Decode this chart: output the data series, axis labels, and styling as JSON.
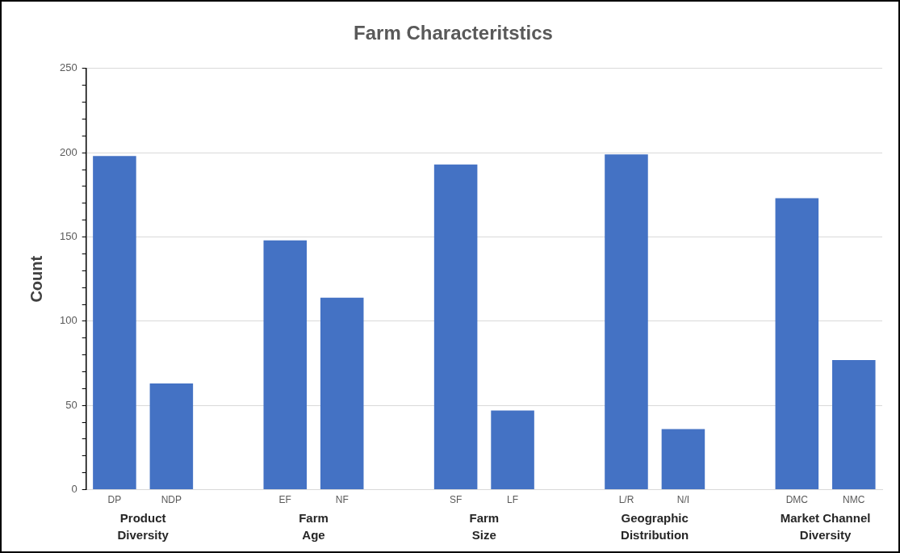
{
  "chart_data": {
    "type": "bar",
    "title": "Farm Characteritstics",
    "ylabel": "Count",
    "categories": [
      "DP",
      "NDP",
      null,
      "EF",
      "NF",
      null,
      "SF",
      "LF",
      null,
      "L/R",
      "N/I",
      null,
      "DMC",
      "NMC"
    ],
    "values": [
      198,
      63,
      null,
      148,
      114,
      null,
      193,
      47,
      null,
      199,
      36,
      null,
      173,
      77
    ],
    "color": "#4472c4",
    "ylim": [
      0,
      250
    ],
    "yticks": [
      0,
      {
        "value": 10,
        "label": null
      },
      {
        "value": 20,
        "label": null
      },
      {
        "value": 30,
        "label": null
      },
      {
        "value": 40,
        "label": null
      },
      50,
      {
        "value": 60,
        "label": null
      },
      {
        "value": 70,
        "label": null
      },
      {
        "value": 80,
        "label": null
      },
      {
        "value": 90,
        "label": null
      },
      100,
      {
        "value": 110,
        "label": null
      },
      {
        "value": 120,
        "label": null
      },
      {
        "value": 130,
        "label": null
      },
      {
        "value": 140,
        "label": null
      },
      150,
      {
        "value": 160,
        "label": null
      },
      {
        "value": 170,
        "label": null
      },
      {
        "value": 180,
        "label": null
      },
      {
        "value": 190,
        "label": null
      },
      200,
      {
        "value": 210,
        "label": null
      },
      {
        "value": 220,
        "label": null
      },
      {
        "value": 230,
        "label": null
      },
      {
        "value": 240,
        "label": null
      },
      250
    ],
    "grid": "y",
    "annotations": [
      "Product\nDiversity",
      "Farm\nAge",
      "Farm\nSize",
      "Geographic\nDistribution",
      "Market Channel\nDiversity"
    ]
  }
}
